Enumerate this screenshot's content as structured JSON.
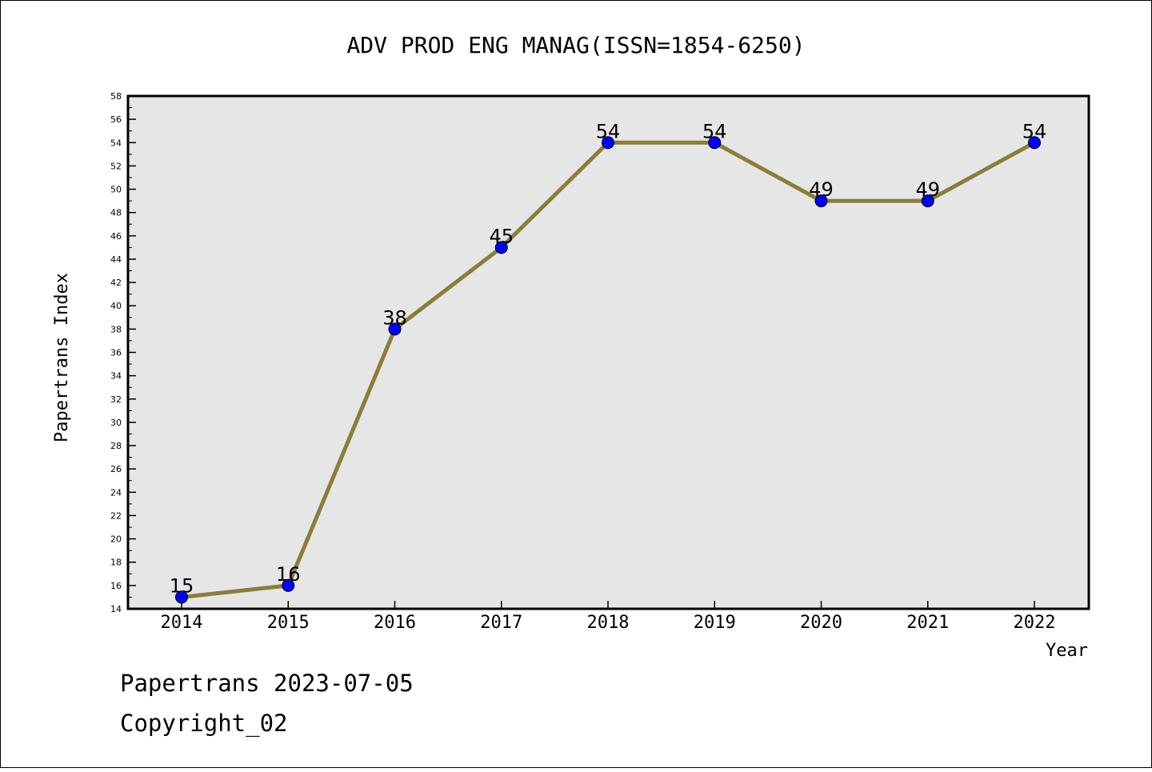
{
  "chart_data": {
    "type": "line",
    "title": "ADV PROD ENG MANAG(ISSN=1854-6250)",
    "xlabel": "Year",
    "ylabel": "Papertrans Index",
    "categories": [
      "2014",
      "2015",
      "2016",
      "2017",
      "2018",
      "2019",
      "2020",
      "2021",
      "2022"
    ],
    "series": [
      {
        "values": [
          15,
          16,
          38,
          45,
          54,
          54,
          49,
          49,
          54
        ]
      }
    ],
    "data_labels": [
      "15",
      "16",
      "38",
      "45",
      "54",
      "54",
      "49",
      "49",
      "54"
    ],
    "ylim": [
      14,
      58
    ],
    "yticks": [
      "14",
      "16",
      "18",
      "20",
      "22",
      "24",
      "26",
      "28",
      "30",
      "32",
      "34",
      "36",
      "38",
      "40",
      "42",
      "44",
      "46",
      "48",
      "50",
      "52",
      "54",
      "56",
      "58"
    ],
    "ytick_values": [
      14,
      16,
      18,
      20,
      22,
      24,
      26,
      28,
      30,
      32,
      34,
      36,
      38,
      40,
      42,
      44,
      46,
      48,
      50,
      52,
      54,
      56,
      58
    ],
    "grid": false,
    "legend": "none",
    "colors": {
      "line": "#8b7d3a",
      "marker_fill": "#0000ff",
      "marker_stroke": "#000000",
      "plot_background": "#e6e6e6"
    }
  },
  "footer": {
    "line1": "Papertrans 2023-07-05",
    "line2": "Copyright_02"
  }
}
